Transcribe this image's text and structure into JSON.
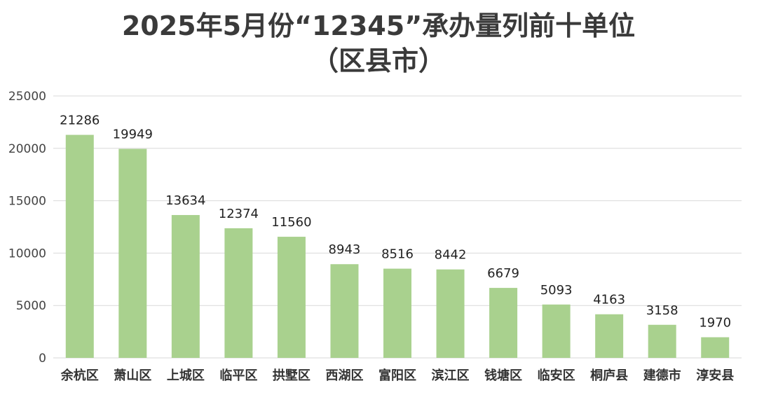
{
  "chart_data": {
    "type": "bar",
    "title_line1": "2025年5月份“12345”承办量列前十单位",
    "title_line2": "（区县市）",
    "categories": [
      "余杭区",
      "萧山区",
      "上城区",
      "临平区",
      "拱墅区",
      "西湖区",
      "富阳区",
      "滨江区",
      "钱塘区",
      "临安区",
      "桐庐县",
      "建德市",
      "淳安县"
    ],
    "values": [
      21286,
      19949,
      13634,
      12374,
      11560,
      8943,
      8516,
      8442,
      6679,
      5093,
      4163,
      3158,
      1970
    ],
    "yticks": [
      0,
      5000,
      10000,
      15000,
      20000,
      25000
    ],
    "ylim": [
      0,
      25000
    ],
    "grid": true,
    "bar_color": "#a9d18e",
    "grid_color": "#d9d9d9"
  }
}
